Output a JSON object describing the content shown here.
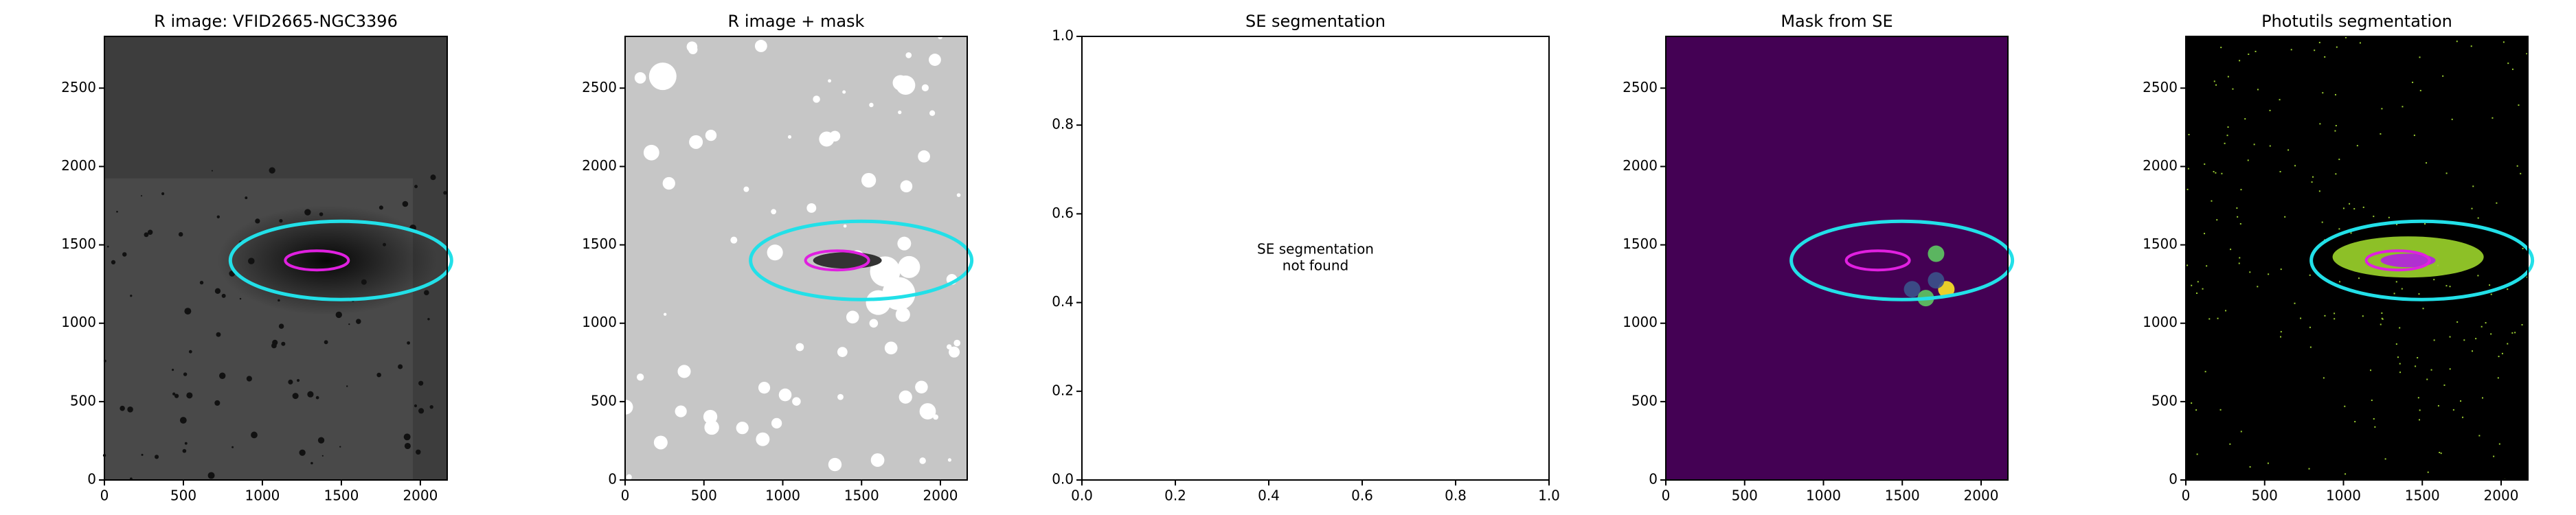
{
  "chart_data": [
    {
      "type": "image",
      "title": "R image: VFID2665-NGC3396",
      "background": "#3d3d3d",
      "xlim": [
        0,
        2170
      ],
      "ylim": [
        0,
        2830
      ],
      "xticks": [
        0,
        500,
        1000,
        1500,
        2000
      ],
      "yticks": [
        0,
        500,
        1000,
        1500,
        2000,
        2500
      ]
    },
    {
      "type": "image",
      "title": "R image + mask",
      "background": "#c6c6c6",
      "xlim": [
        0,
        2170
      ],
      "ylim": [
        0,
        2830
      ],
      "xticks": [
        0,
        500,
        1000,
        1500,
        2000
      ],
      "yticks": [
        0,
        500,
        1000,
        1500,
        2000,
        2500
      ]
    },
    {
      "type": "empty",
      "title": "SE segmentation",
      "annotation": [
        "SE segmentation",
        "not found"
      ],
      "xlim": [
        0,
        1
      ],
      "ylim": [
        0,
        1
      ],
      "xticks": [
        {
          "value": 0,
          "label": "0.0"
        },
        {
          "value": 0.2,
          "label": "0.2"
        },
        {
          "value": 0.4,
          "label": "0.4"
        },
        {
          "value": 0.6,
          "label": "0.6"
        },
        {
          "value": 0.8,
          "label": "0.8"
        },
        {
          "value": 1,
          "label": "1.0"
        }
      ],
      "yticks": [
        {
          "value": 0,
          "label": "0.0"
        },
        {
          "value": 0.2,
          "label": "0.2"
        },
        {
          "value": 0.4,
          "label": "0.4"
        },
        {
          "value": 0.6,
          "label": "0.6"
        },
        {
          "value": 0.8,
          "label": "0.8"
        },
        {
          "value": 1,
          "label": "1.0"
        }
      ]
    },
    {
      "type": "image",
      "title": "Mask from SE",
      "background": "#440154",
      "xlim": [
        0,
        2170
      ],
      "ylim": [
        0,
        2830
      ],
      "xticks": [
        0,
        500,
        1000,
        1500,
        2000
      ],
      "yticks": [
        0,
        500,
        1000,
        1500,
        2000,
        2500
      ]
    },
    {
      "type": "image",
      "title": "Photutils segmentation",
      "background": "#000000",
      "xlim": [
        0,
        2170
      ],
      "ylim": [
        0,
        2830
      ],
      "xticks": [
        0,
        500,
        1000,
        1500,
        2000
      ],
      "yticks": [
        0,
        500,
        1000,
        1500,
        2000,
        2500
      ]
    }
  ]
}
